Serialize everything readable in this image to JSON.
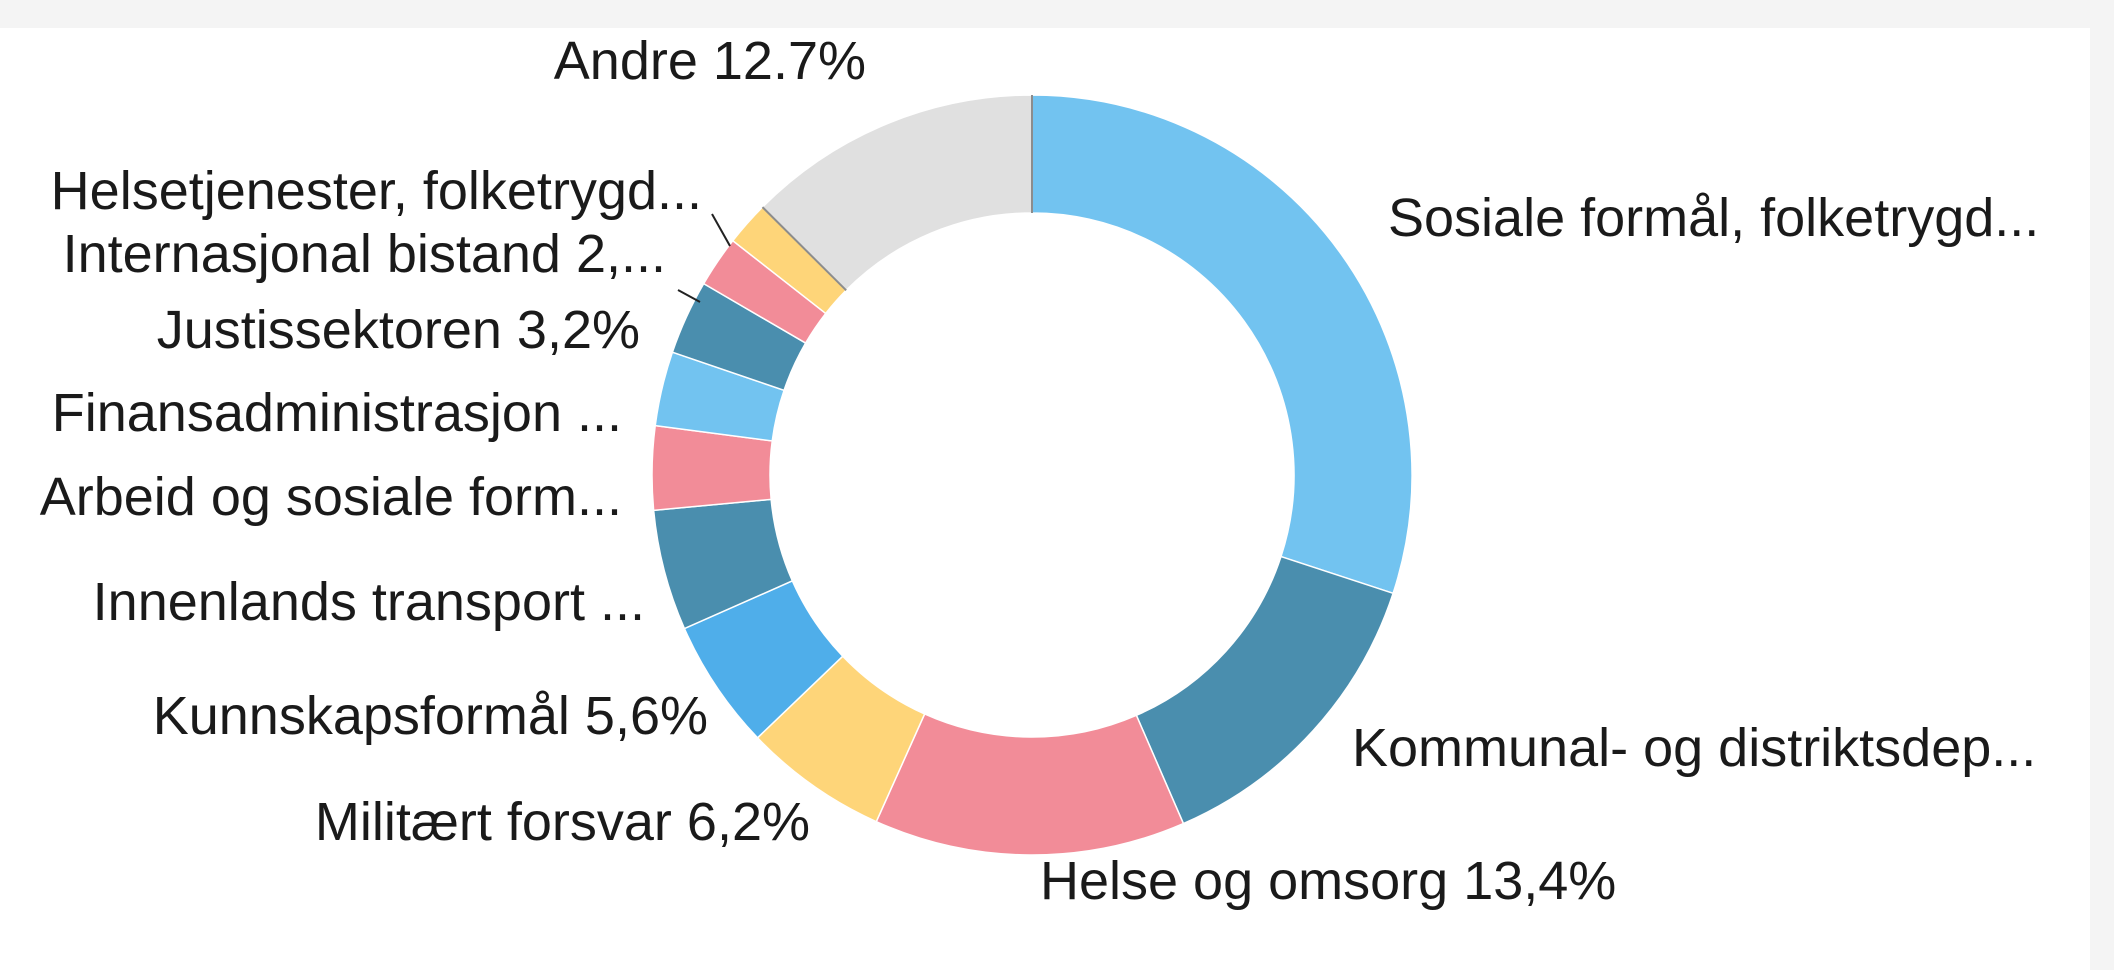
{
  "chart_data": {
    "type": "pie",
    "donut": true,
    "slices": [
      {
        "label": "Sosiale formål, folketrygd...",
        "value": 30.4,
        "color": "#72c3f0"
      },
      {
        "label": "Kommunal- og distriktsdep...",
        "value": 13.6,
        "color": "#4a8eae"
      },
      {
        "label": "Helse og omsorg  13,4%",
        "value": 13.4,
        "color": "#f28c98"
      },
      {
        "label": "Militært forsvar  6,2%",
        "value": 6.2,
        "color": "#fed579"
      },
      {
        "label": "Kunnskapsformål  5,6%",
        "value": 5.6,
        "color": "#4faeea"
      },
      {
        "label": "Innenlands transport  ...",
        "value": 5.2,
        "color": "#4a8eae"
      },
      {
        "label": "Arbeid og sosiale form...",
        "value": 3.6,
        "color": "#f28c98"
      },
      {
        "label": "Finansadministrasjon ...",
        "value": 3.2,
        "color": "#72c3f0"
      },
      {
        "label": "Justissektoren  3,2%",
        "value": 3.2,
        "color": "#4a8eae"
      },
      {
        "label": "Internasjonal bistand  2,...",
        "value": 2.2,
        "color": "#f28c98"
      },
      {
        "label": "Helsetjenester, folketrygd...",
        "value": 1.9,
        "color": "#fed579"
      },
      {
        "label": "Andre 12.7%",
        "value": 12.7,
        "color": "#e0e0e0"
      }
    ]
  }
}
